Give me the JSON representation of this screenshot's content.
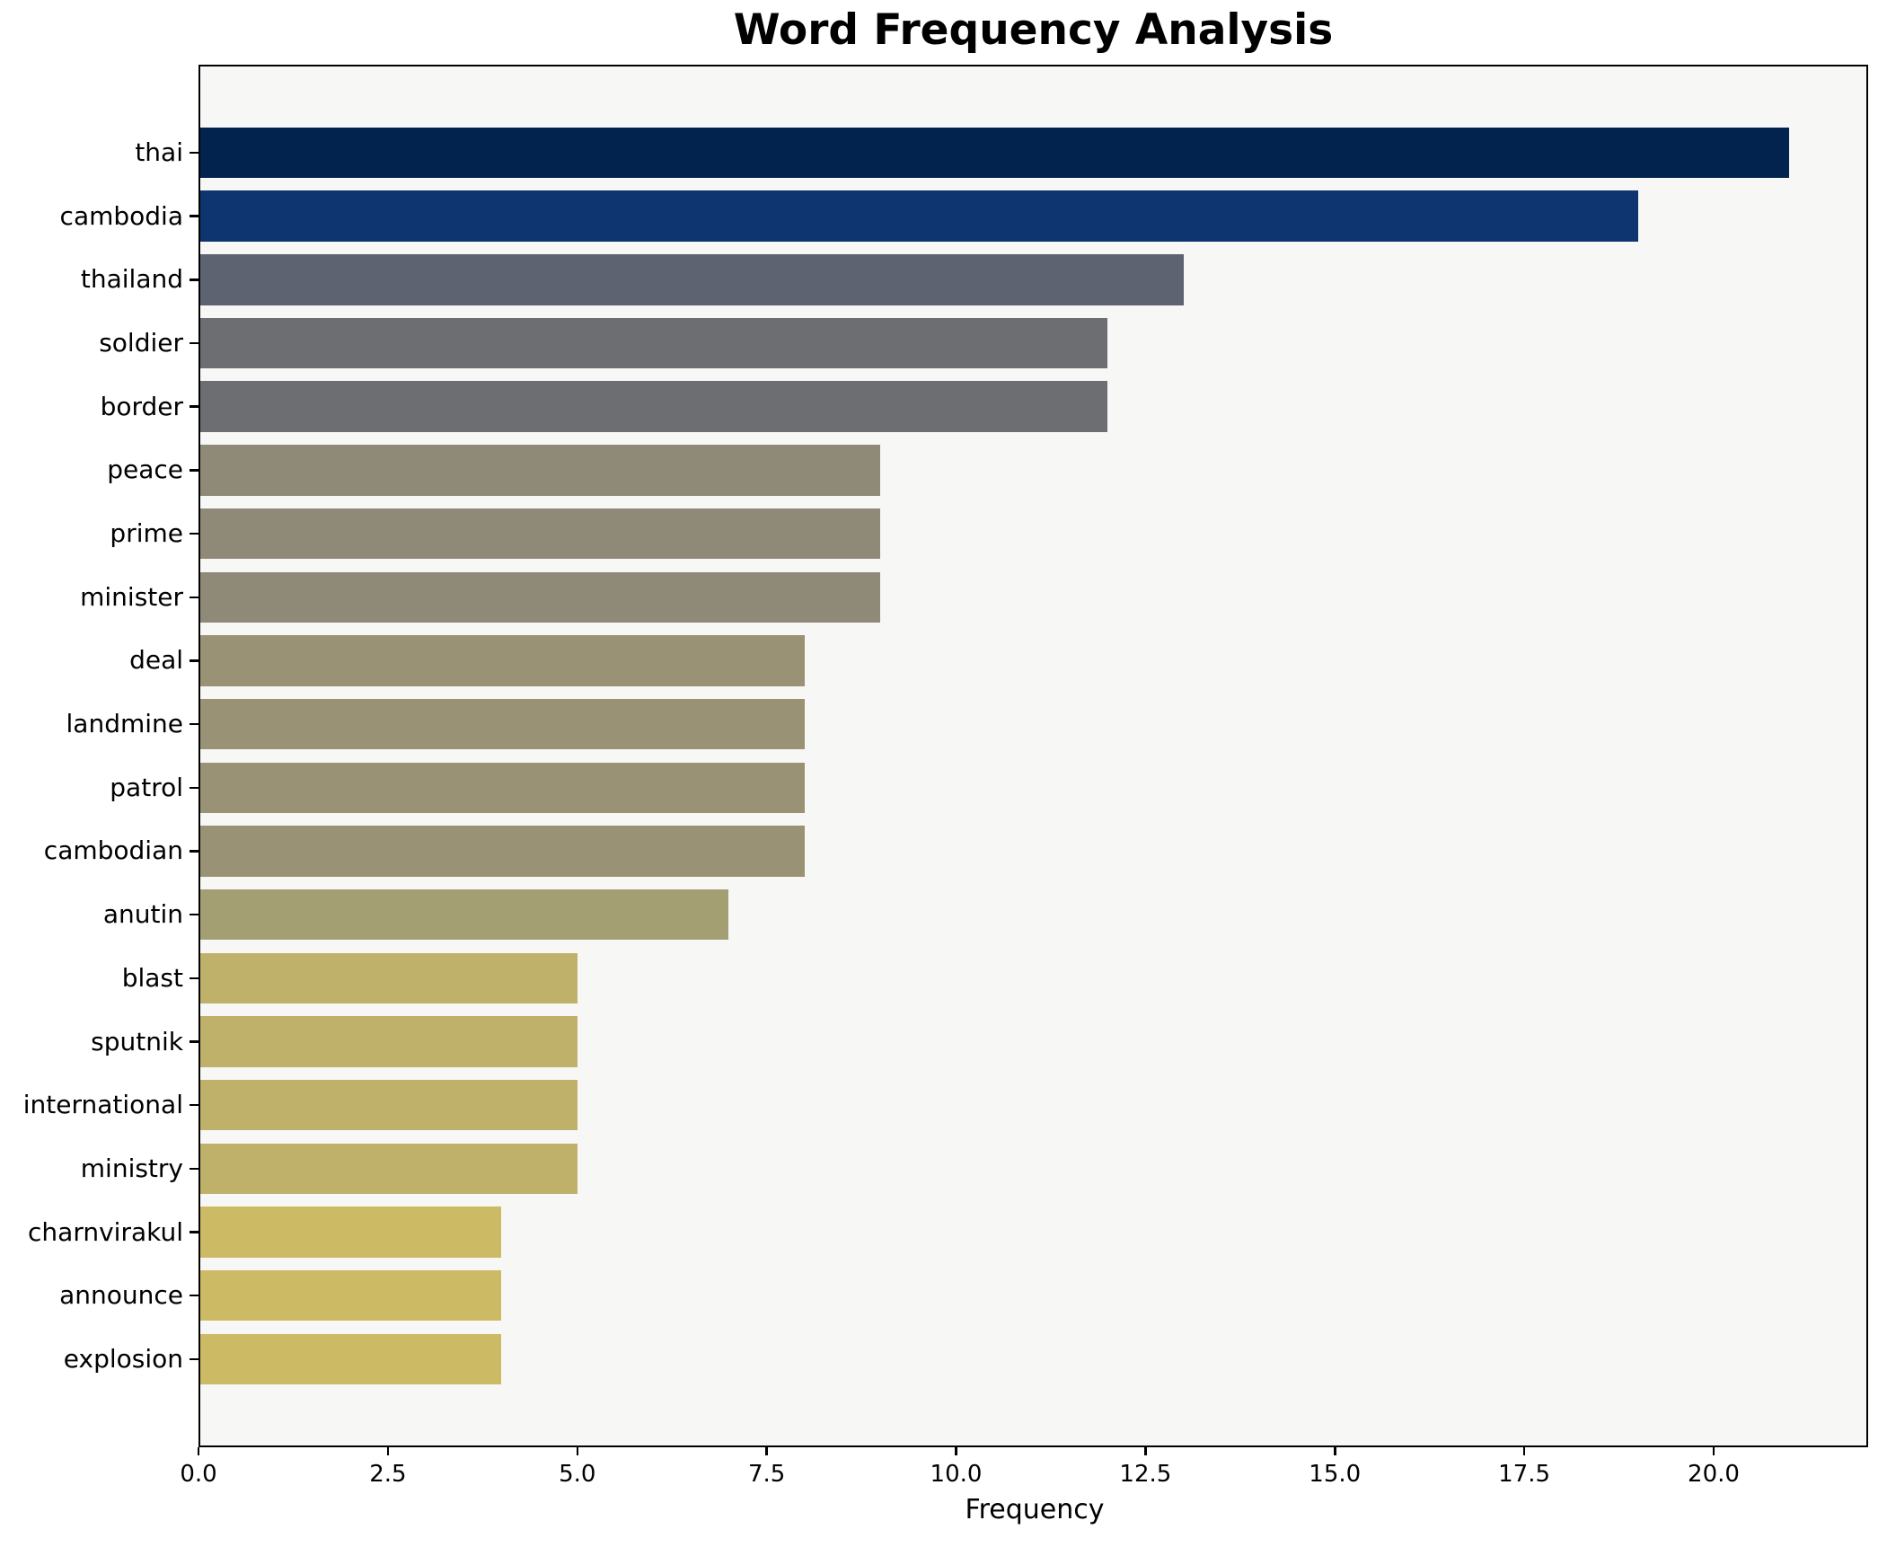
{
  "chart_data": {
    "type": "bar",
    "orientation": "horizontal",
    "title": "Word Frequency Analysis",
    "xlabel": "Frequency",
    "ylabel": "",
    "categories": [
      "thai",
      "cambodia",
      "thailand",
      "soldier",
      "border",
      "peace",
      "prime",
      "minister",
      "deal",
      "landmine",
      "patrol",
      "cambodian",
      "anutin",
      "blast",
      "sputnik",
      "international",
      "ministry",
      "charnvirakul",
      "announce",
      "explosion"
    ],
    "values": [
      21,
      19,
      13,
      12,
      12,
      9,
      9,
      9,
      8,
      8,
      8,
      8,
      7,
      5,
      5,
      5,
      5,
      4,
      4,
      4
    ],
    "bar_colors": [
      "#01234e",
      "#0e3570",
      "#5d6370",
      "#6d6e71",
      "#6d6e71",
      "#8f8977",
      "#8f8977",
      "#8f8977",
      "#999274",
      "#999274",
      "#999274",
      "#999274",
      "#a49e73",
      "#bfb16a",
      "#bfb16a",
      "#bfb16a",
      "#bfb16a",
      "#ccba64",
      "#ccba64",
      "#ccba64"
    ],
    "xlim": [
      0,
      22.05
    ],
    "xticks": [
      0.0,
      2.5,
      5.0,
      7.5,
      10.0,
      12.5,
      15.0,
      17.5,
      20.0
    ],
    "xtick_labels": [
      "0.0",
      "2.5",
      "5.0",
      "7.5",
      "10.0",
      "12.5",
      "15.0",
      "17.5",
      "20.0"
    ],
    "grid": false,
    "legend": null,
    "colors": {
      "plot_background": "#f7f7f6",
      "figure_background": "#ffffff",
      "spine": "#000000",
      "text": "#000000"
    }
  }
}
